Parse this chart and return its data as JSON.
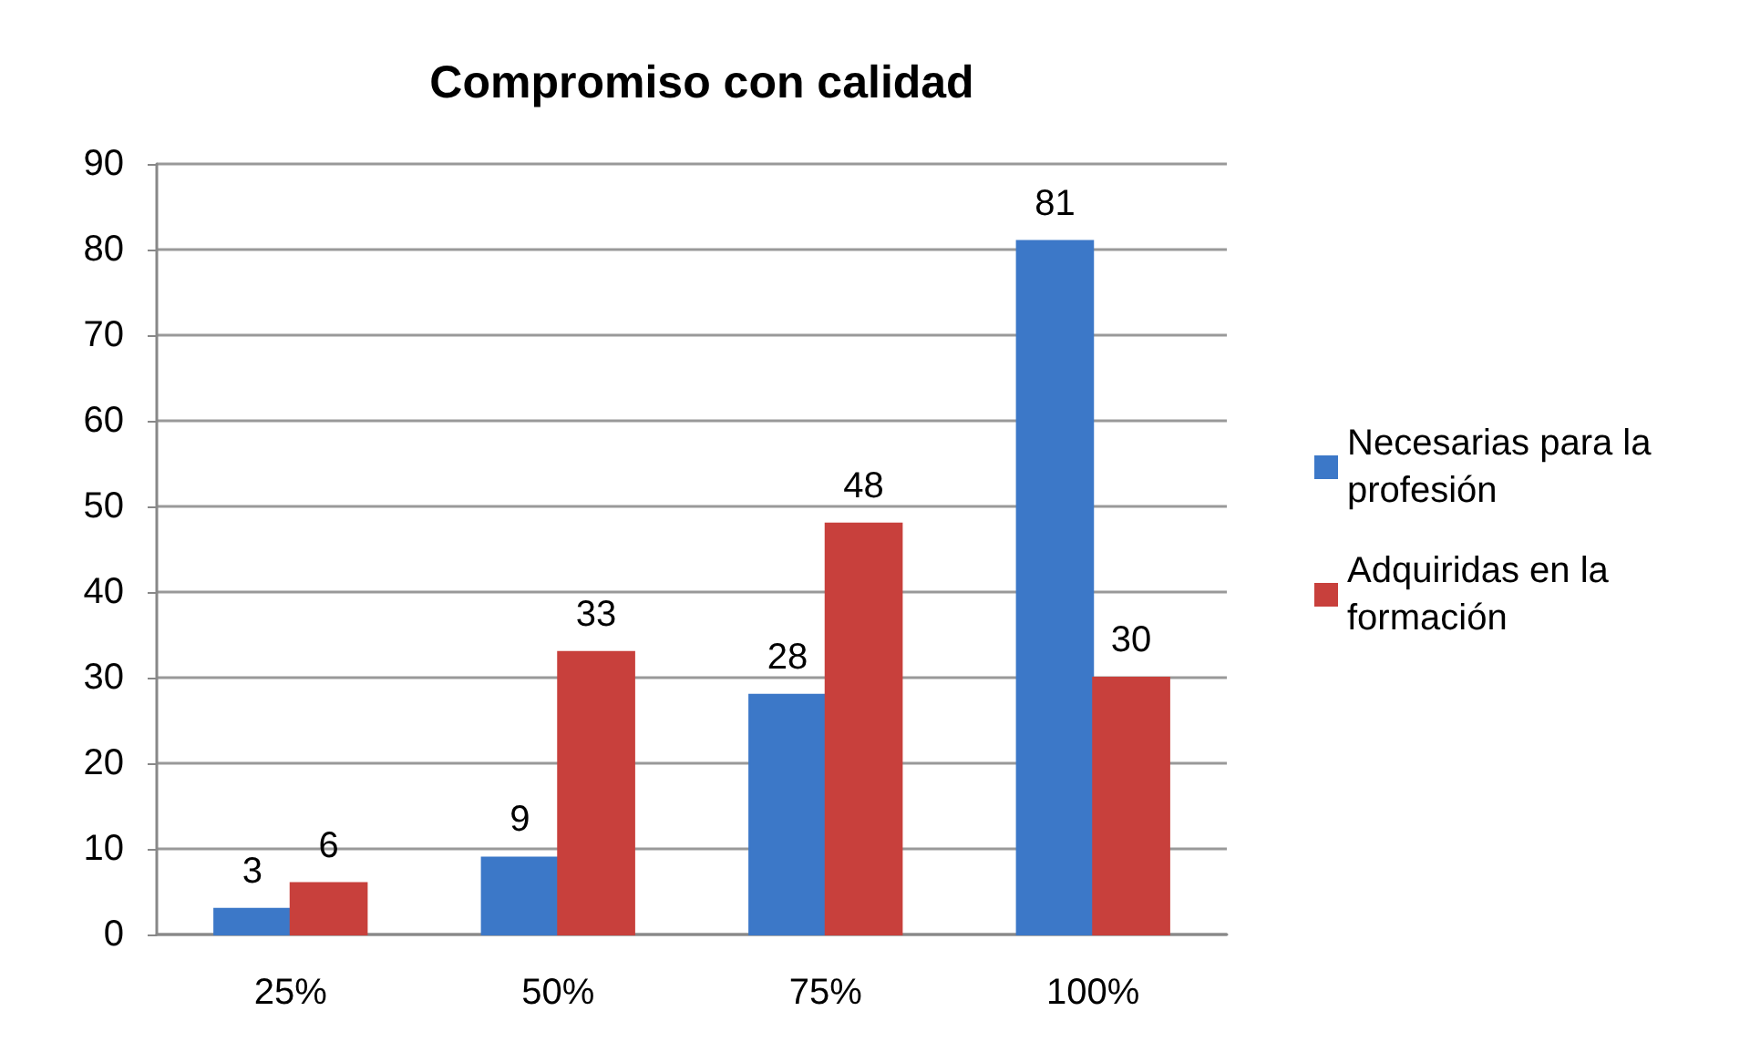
{
  "chart_data": {
    "type": "bar",
    "title": "Compromiso con calidad",
    "categories": [
      "25%",
      "50%",
      "75%",
      "100%"
    ],
    "series": [
      {
        "name": "Necesarias para la profesión",
        "color": "#3c78c8",
        "values": [
          3,
          9,
          28,
          81
        ]
      },
      {
        "name": "Adquiridas en la formación",
        "color": "#c8403c",
        "values": [
          6,
          33,
          48,
          30
        ]
      }
    ],
    "ylim": [
      0,
      90
    ],
    "yticks": [
      0,
      10,
      20,
      30,
      40,
      50,
      60,
      70,
      80,
      90
    ],
    "grid": "y",
    "legend": "right",
    "data_labels": true
  }
}
